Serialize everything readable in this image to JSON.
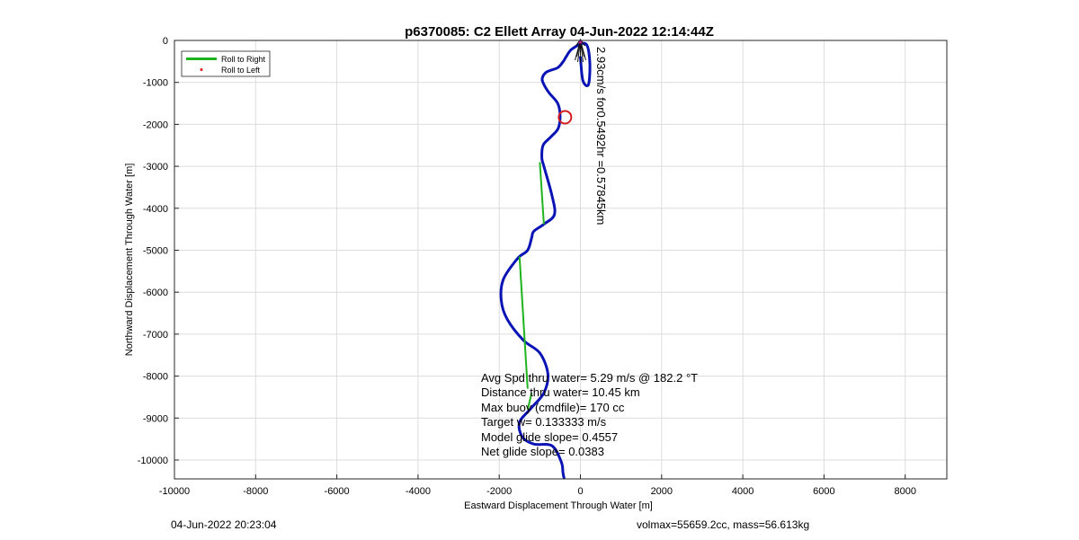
{
  "chart_data": {
    "type": "line",
    "title": "p6370085: C2 Ellett Array 04-Jun-2022 12:14:44Z",
    "xlabel": "Eastward Displacement Through Water [m]",
    "ylabel": "Northward Displacement Through Water [m]",
    "xlim": [
      -10000,
      8000
    ],
    "ylim": [
      -10500,
      0
    ],
    "xticks": [
      "-10000",
      "-8000",
      "-6000",
      "-4000",
      "-2000",
      "0",
      "2000",
      "4000",
      "6000",
      "8000"
    ],
    "yticks": [
      "0",
      "-1000",
      "-2000",
      "-3000",
      "-4000",
      "-5000",
      "-6000",
      "-7000",
      "-8000",
      "-9000",
      "-10000"
    ],
    "grid": true,
    "legend_position": "top-left",
    "colors": {
      "track": "#0a14b4",
      "roll_right": "#1fb31f",
      "roll_left": "#e0141e",
      "circle": "#d21e1e",
      "grid": "#dcdcdc"
    },
    "legend": [
      {
        "label": "Roll to Right",
        "style": "line",
        "color": "#1fb31f"
      },
      {
        "label": "Roll to Left",
        "style": "dot",
        "color": "#e0141e"
      }
    ],
    "track": {
      "x": [
        -400,
        -430,
        -470,
        -700,
        -1150,
        -1430,
        -1500,
        -1200,
        -900,
        -800,
        -1000,
        -1400,
        -1800,
        -1950,
        -1900,
        -1550,
        -1300,
        -1200,
        -1150,
        -900,
        -640,
        -700,
        -900,
        -950,
        -920,
        -730,
        -550,
        -500,
        -560,
        -770,
        -900,
        -940,
        -830,
        -560,
        -420,
        -360,
        -200,
        130,
        230,
        200,
        60,
        0
      ],
      "y": [
        -10450,
        -10300,
        -10050,
        -9660,
        -9620,
        -9450,
        -9100,
        -8750,
        -8400,
        -7950,
        -7450,
        -7150,
        -6650,
        -6200,
        -5700,
        -5200,
        -5000,
        -4700,
        -4550,
        -4380,
        -4150,
        -3700,
        -3000,
        -2800,
        -2500,
        -2300,
        -2100,
        -1800,
        -1500,
        -1250,
        -1050,
        -900,
        -750,
        -650,
        -500,
        -400,
        -200,
        -80,
        -500,
        -1050,
        -950,
        -400
      ]
    },
    "roll_right_segments": [
      {
        "x": [
          -1000,
          -900
        ],
        "y": [
          -2900,
          -4380
        ]
      },
      {
        "x": [
          -1500,
          -1300
        ],
        "y": [
          -5150,
          -8300
        ]
      },
      {
        "x": [
          -1200,
          -1300
        ],
        "y": [
          -8400,
          -8800
        ]
      }
    ],
    "surface_marker": {
      "x": -380,
      "y": -1830
    },
    "annotation_rotated": "2.93cm/s for0.5492hr =0.57845km",
    "stats": [
      "Avg Spd thru water=  5.29 m/s @ 182.2 °T",
      "Distance thru water= 10.45 km",
      "Max buoy (cmdfile)= 170 cc",
      "Target w= 0.133333 m/s",
      "Model glide slope= 0.4557",
      "Net glide slope= 0.0383"
    ]
  },
  "footer": {
    "left": "04-Jun-2022 20:23:04",
    "right": "volmax=55659.2cc, mass=56.613kg"
  }
}
